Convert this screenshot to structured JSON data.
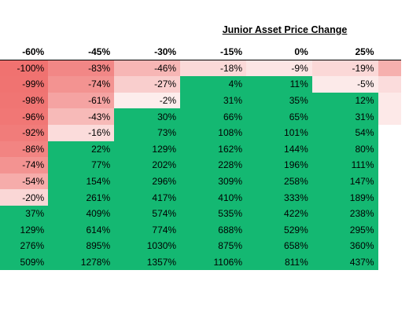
{
  "super_header": "Junior Asset Price Change",
  "columns": [
    "-60%",
    "-45%",
    "-30%",
    "-15%",
    "0%",
    "25%"
  ],
  "rows": [
    [
      "-100%",
      "-83%",
      "-46%",
      "-18%",
      "-9%",
      "-19%"
    ],
    [
      "-99%",
      "-74%",
      "-27%",
      "4%",
      "11%",
      "-5%"
    ],
    [
      "-98%",
      "-61%",
      "-2%",
      "31%",
      "35%",
      "12%"
    ],
    [
      "-96%",
      "-43%",
      "30%",
      "66%",
      "65%",
      "31%"
    ],
    [
      "-92%",
      "-16%",
      "73%",
      "108%",
      "101%",
      "54%"
    ],
    [
      "-86%",
      "22%",
      "129%",
      "162%",
      "144%",
      "80%"
    ],
    [
      "-74%",
      "77%",
      "202%",
      "228%",
      "196%",
      "111%"
    ],
    [
      "-54%",
      "154%",
      "296%",
      "309%",
      "258%",
      "147%"
    ],
    [
      "-20%",
      "261%",
      "417%",
      "410%",
      "333%",
      "189%"
    ],
    [
      "37%",
      "409%",
      "574%",
      "535%",
      "422%",
      "238%"
    ],
    [
      "129%",
      "614%",
      "774%",
      "688%",
      "529%",
      "295%"
    ],
    [
      "276%",
      "895%",
      "1030%",
      "875%",
      "658%",
      "360%"
    ],
    [
      "509%",
      "1278%",
      "1357%",
      "1106%",
      "811%",
      "437%"
    ]
  ],
  "edge_column_fills": [
    "#f6b0ae",
    "#fbdcdc",
    "#fde9e8",
    "#fde9e8",
    "#ffffff",
    "#ffffff",
    "#ffffff",
    "#ffffff",
    "#ffffff",
    "#ffffff",
    "#ffffff",
    "#ffffff",
    "#ffffff"
  ],
  "colors": {
    "positive": "#14b872",
    "negative_strong": "#f07270",
    "negative_light": "#fde6e5",
    "neutral": "#ffffff"
  }
}
